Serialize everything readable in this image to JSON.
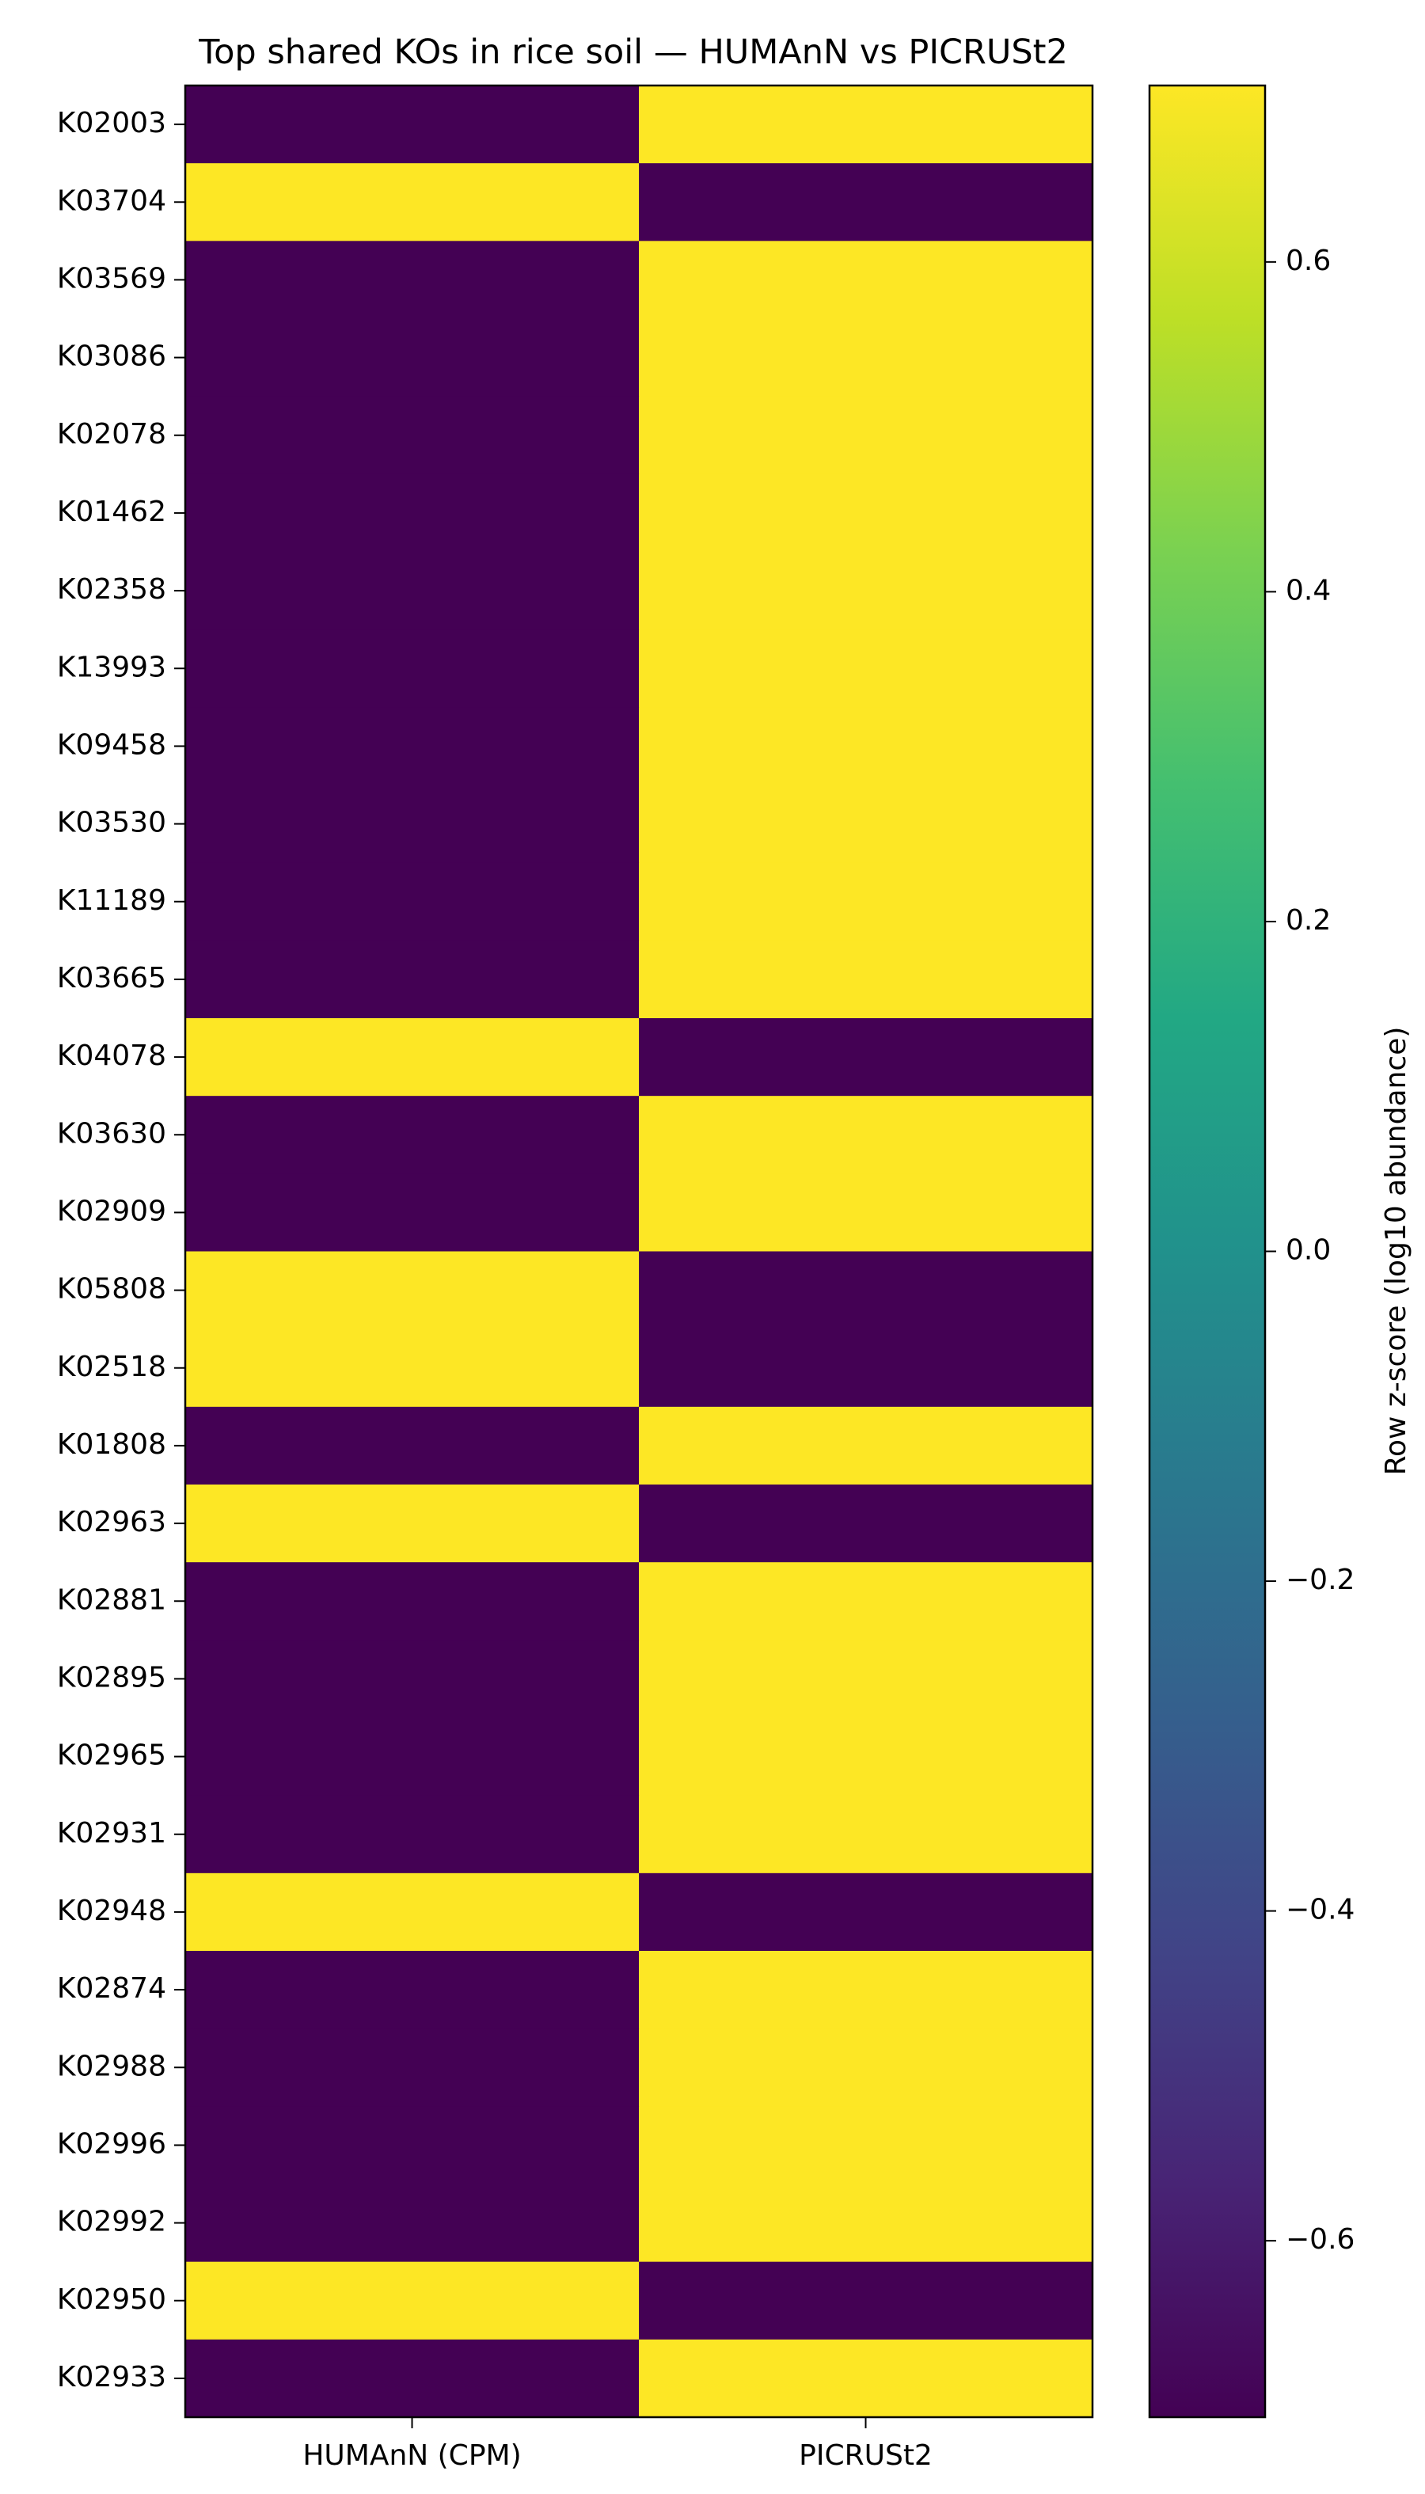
{
  "chart_data": {
    "type": "heatmap",
    "title": "Top shared KOs in rice soil — HUMAnN vs PICRUSt2",
    "xlabel": "",
    "ylabel": "",
    "columns": [
      "HUMAnN (CPM)",
      "PICRUSt2"
    ],
    "rows": [
      "K02003",
      "K03704",
      "K03569",
      "K03086",
      "K02078",
      "K01462",
      "K02358",
      "K13993",
      "K09458",
      "K03530",
      "K11189",
      "K03665",
      "K04078",
      "K03630",
      "K02909",
      "K05808",
      "K02518",
      "K01808",
      "K02963",
      "K02881",
      "K02895",
      "K02965",
      "K02931",
      "K02948",
      "K02874",
      "K02988",
      "K02996",
      "K02992",
      "K02950",
      "K02933"
    ],
    "values": [
      [
        -0.707,
        0.707
      ],
      [
        0.707,
        -0.707
      ],
      [
        -0.707,
        0.707
      ],
      [
        -0.707,
        0.707
      ],
      [
        -0.707,
        0.707
      ],
      [
        -0.707,
        0.707
      ],
      [
        -0.707,
        0.707
      ],
      [
        -0.707,
        0.707
      ],
      [
        -0.707,
        0.707
      ],
      [
        -0.707,
        0.707
      ],
      [
        -0.707,
        0.707
      ],
      [
        -0.707,
        0.707
      ],
      [
        0.707,
        -0.707
      ],
      [
        -0.707,
        0.707
      ],
      [
        -0.707,
        0.707
      ],
      [
        0.707,
        -0.707
      ],
      [
        0.707,
        -0.707
      ],
      [
        -0.707,
        0.707
      ],
      [
        0.707,
        -0.707
      ],
      [
        -0.707,
        0.707
      ],
      [
        -0.707,
        0.707
      ],
      [
        -0.707,
        0.707
      ],
      [
        -0.707,
        0.707
      ],
      [
        0.707,
        -0.707
      ],
      [
        -0.707,
        0.707
      ],
      [
        -0.707,
        0.707
      ],
      [
        -0.707,
        0.707
      ],
      [
        -0.707,
        0.707
      ],
      [
        0.707,
        -0.707
      ],
      [
        -0.707,
        0.707
      ]
    ],
    "colorbar": {
      "label": "Row z-score (log10 abundance)",
      "range": [
        -0.707,
        0.707
      ],
      "ticks": [
        -0.6,
        -0.4,
        -0.2,
        0.0,
        0.2,
        0.4,
        0.6
      ],
      "tick_labels": [
        "−0.6",
        "−0.4",
        "−0.2",
        "0.0",
        "0.2",
        "0.4",
        "0.6"
      ],
      "colormap": "viridis"
    },
    "colors": {
      "low": "#440154",
      "high": "#fde725"
    }
  }
}
